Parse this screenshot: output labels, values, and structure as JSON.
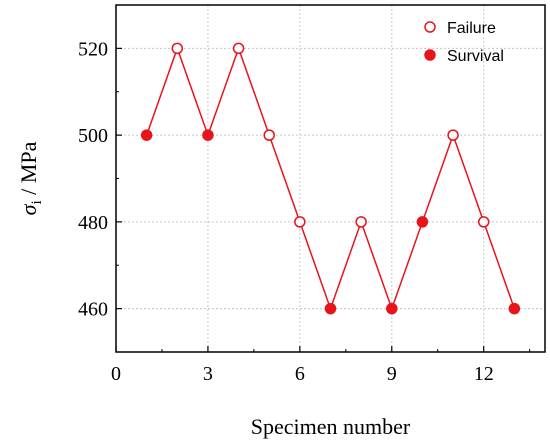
{
  "chart_data": {
    "type": "scatter",
    "xlabel": "Specimen number",
    "ylabel_main": "σ",
    "ylabel_sub": "i",
    "ylabel_rest": " / MPa",
    "xlim": [
      0,
      14
    ],
    "ylim": [
      450,
      530
    ],
    "xticks": [
      0,
      3,
      6,
      9,
      12
    ],
    "yticks": [
      460,
      480,
      500,
      520
    ],
    "grid": true,
    "legend_position": "top-right",
    "color": "#e8141c",
    "legend": [
      {
        "label": "Failure",
        "marker": "open-circle"
      },
      {
        "label": "Survival",
        "marker": "filled-circle"
      }
    ],
    "points": [
      {
        "x": 1,
        "y": 500,
        "result": "Survival"
      },
      {
        "x": 2,
        "y": 520,
        "result": "Failure"
      },
      {
        "x": 3,
        "y": 500,
        "result": "Survival"
      },
      {
        "x": 4,
        "y": 520,
        "result": "Failure"
      },
      {
        "x": 5,
        "y": 500,
        "result": "Failure"
      },
      {
        "x": 6,
        "y": 480,
        "result": "Failure"
      },
      {
        "x": 7,
        "y": 460,
        "result": "Survival"
      },
      {
        "x": 8,
        "y": 480,
        "result": "Failure"
      },
      {
        "x": 9,
        "y": 460,
        "result": "Survival"
      },
      {
        "x": 10,
        "y": 480,
        "result": "Survival"
      },
      {
        "x": 11,
        "y": 500,
        "result": "Failure"
      },
      {
        "x": 12,
        "y": 480,
        "result": "Failure"
      },
      {
        "x": 13,
        "y": 460,
        "result": "Survival"
      }
    ]
  }
}
